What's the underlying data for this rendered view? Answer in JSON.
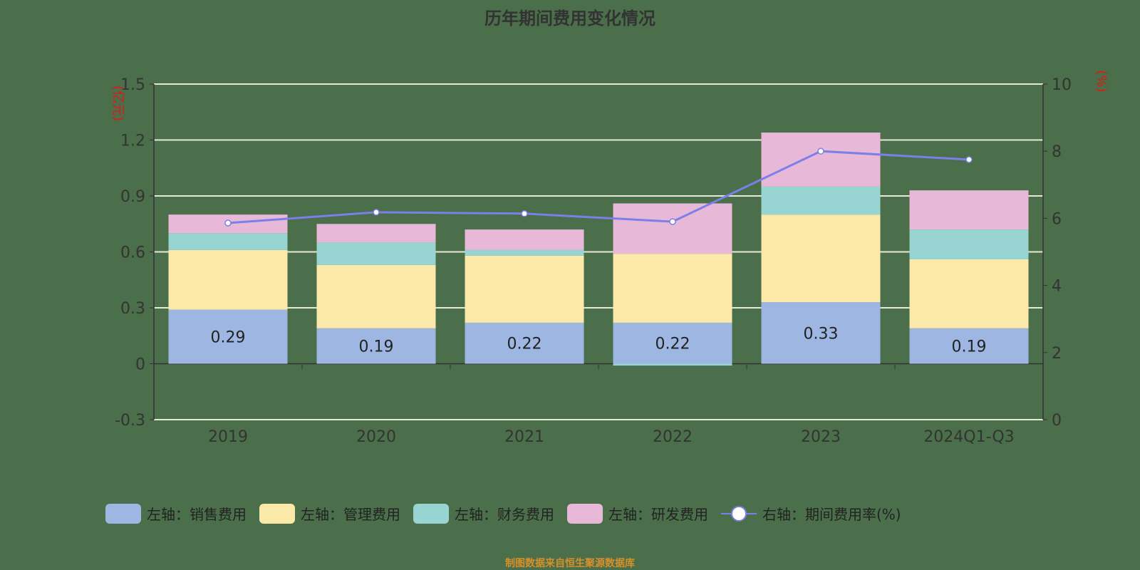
{
  "chart_data": {
    "type": "bar",
    "stacked": true,
    "title": "历年期间费用变化情况",
    "categories": [
      "2019",
      "2020",
      "2021",
      "2022",
      "2023",
      "2024Q1-Q3"
    ],
    "left_axis": {
      "unit": "(亿元)",
      "ylim": [
        -0.3,
        1.5
      ],
      "ticks": [
        "-0.3",
        "0",
        "0.3",
        "0.6",
        "0.9",
        "1.2",
        "1.5"
      ]
    },
    "right_axis": {
      "unit": "(%)",
      "ylim": [
        0,
        10
      ],
      "ticks": [
        "0",
        "2",
        "4",
        "6",
        "8",
        "10"
      ]
    },
    "grid": true,
    "legend_position": "bottom",
    "series": [
      {
        "name": "左轴：销售费用",
        "color": "#9db6e2",
        "values": [
          0.29,
          0.19,
          0.22,
          0.22,
          0.33,
          0.19
        ],
        "labels": [
          "0.29",
          "0.19",
          "0.22",
          "0.22",
          "0.33",
          "0.19"
        ]
      },
      {
        "name": "左轴：管理费用",
        "color": "#fbe9a9",
        "values": [
          0.32,
          0.34,
          0.36,
          0.37,
          0.47,
          0.37
        ]
      },
      {
        "name": "左轴：财务费用",
        "color": "#97d4d2",
        "values": [
          0.09,
          0.12,
          0.03,
          -0.01,
          0.15,
          0.16
        ]
      },
      {
        "name": "左轴：研发费用",
        "color": "#e8b8d8",
        "values": [
          0.1,
          0.1,
          0.11,
          0.27,
          0.29,
          0.21
        ]
      }
    ],
    "line_series": {
      "name": "右轴：期间费用率(%)",
      "color": "#7b7fe8",
      "values": [
        5.86,
        6.18,
        6.14,
        5.9,
        8.0,
        7.75
      ]
    }
  },
  "source": "制图数据来自恒生聚源数据库"
}
